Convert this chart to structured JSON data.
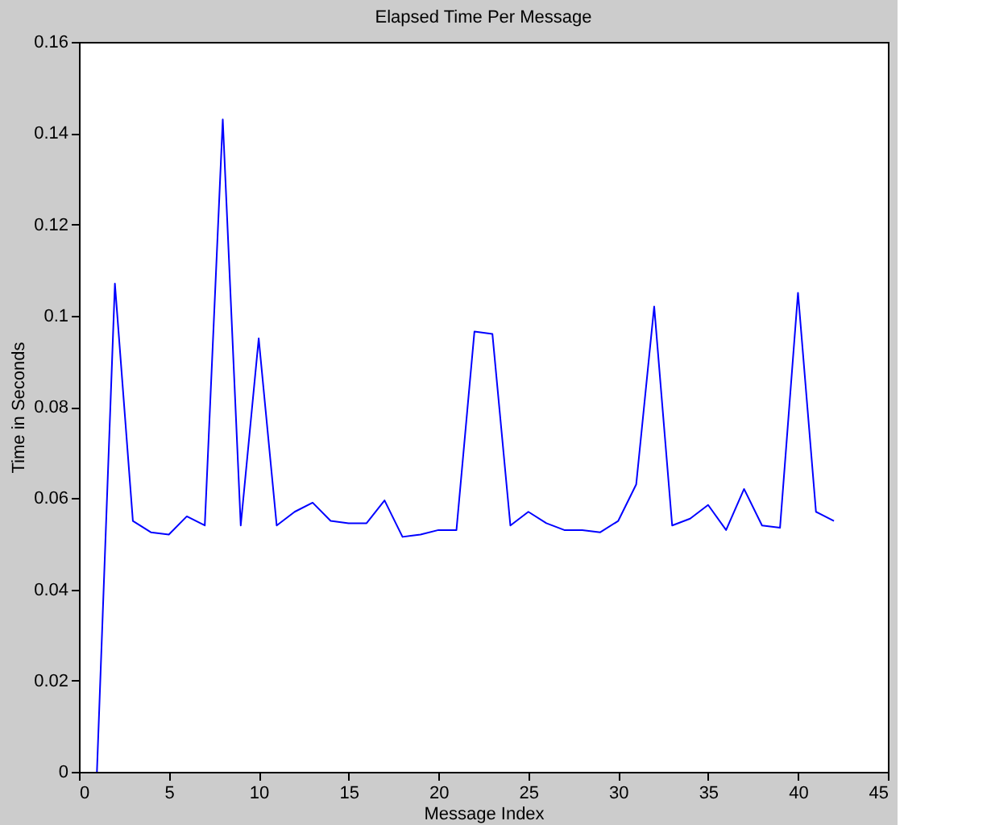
{
  "chart_data": {
    "type": "line",
    "title": "Elapsed Time Per Message",
    "xlabel": "Message Index",
    "ylabel": "Time in Seconds",
    "x": [
      1,
      2,
      3,
      4,
      5,
      6,
      7,
      8,
      9,
      10,
      11,
      12,
      13,
      14,
      15,
      16,
      17,
      18,
      19,
      20,
      21,
      22,
      23,
      24,
      25,
      26,
      27,
      28,
      29,
      30,
      31,
      32,
      33,
      34,
      35,
      36,
      37,
      38,
      39,
      40,
      41,
      42
    ],
    "series": [
      {
        "color": "#0000ff",
        "values": [
          0,
          0.107,
          0.055,
          0.0525,
          0.052,
          0.056,
          0.054,
          0.143,
          0.054,
          0.095,
          0.054,
          0.057,
          0.059,
          0.055,
          0.0545,
          0.0545,
          0.0595,
          0.0515,
          0.052,
          0.053,
          0.053,
          0.0965,
          0.096,
          0.054,
          0.057,
          0.0545,
          0.053,
          0.053,
          0.0525,
          0.055,
          0.063,
          0.102,
          0.054,
          0.0555,
          0.0585,
          0.053,
          0.062,
          0.054,
          0.0535,
          0.105,
          0.057,
          0.055
        ]
      }
    ],
    "xlim": [
      0,
      45
    ],
    "xticks": [
      0,
      5,
      10,
      15,
      20,
      25,
      30,
      35,
      40,
      45
    ],
    "ylim": [
      0,
      0.16
    ],
    "yticks": [
      0,
      0.02,
      0.04,
      0.06,
      0.08,
      0.1,
      0.12,
      0.14,
      0.16
    ],
    "grid": false,
    "legend": false
  }
}
